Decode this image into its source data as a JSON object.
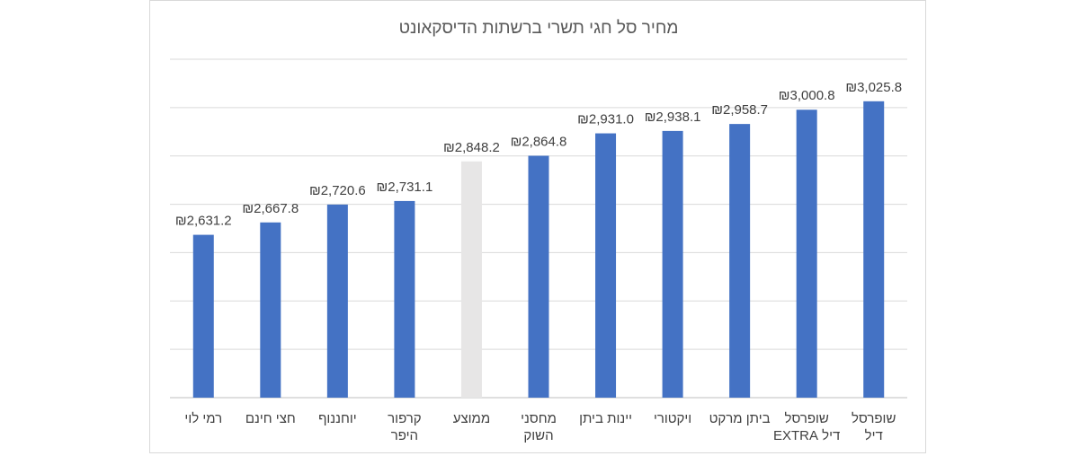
{
  "chart_data": {
    "type": "bar",
    "title": "מחיר סל חגי תשרי ברשתות הדיסקאונט",
    "xlabel": "",
    "ylabel": "",
    "ylim": [
      2150,
      3150
    ],
    "grid": true,
    "legend": "none",
    "categories": [
      [
        "רמי לוי"
      ],
      [
        "חצי חינם"
      ],
      [
        "יוחננוף"
      ],
      [
        "קרפור",
        "היפר"
      ],
      [
        "ממוצע"
      ],
      [
        "מחסני",
        "השוק"
      ],
      [
        "יינות ביתן"
      ],
      [
        "ויקטורי"
      ],
      [
        "ביתן מרקט"
      ],
      [
        "שופרסל",
        "דיל EXTRA"
      ],
      [
        "שופרסל",
        "דיל"
      ]
    ],
    "values": [
      2631.2,
      2667.8,
      2720.6,
      2731.1,
      2848.2,
      2864.8,
      2931.0,
      2938.1,
      2958.7,
      3000.8,
      3025.8
    ],
    "data_labels": [
      "₪2,631.2",
      "₪2,667.8",
      "₪2,720.6",
      "₪2,731.1",
      "₪2,848.2",
      "₪2,864.8",
      "₪2,931.0",
      "₪2,938.1",
      "₪2,958.7",
      "₪3,000.8",
      "₪3,025.8"
    ],
    "bar_colors": [
      "#4472c4",
      "#4472c4",
      "#4472c4",
      "#4472c4",
      "#e7e6e6",
      "#4472c4",
      "#4472c4",
      "#4472c4",
      "#4472c4",
      "#4472c4",
      "#4472c4"
    ],
    "gridline_color": "#d9d9d9",
    "axis_color": "#bfbfbf"
  }
}
